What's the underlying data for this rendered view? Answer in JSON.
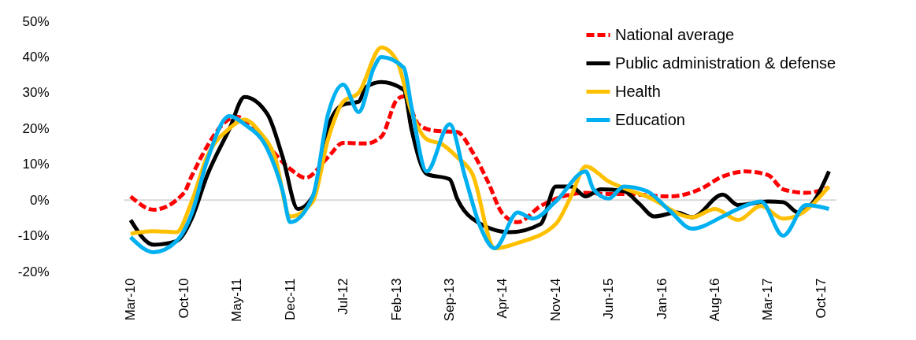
{
  "chart_data": {
    "type": "line",
    "xlim": [
      "2010-02",
      "2017-12"
    ],
    "xticks": [
      {
        "value": "2010-03",
        "label": "Mar-10"
      },
      {
        "value": "2010-10",
        "label": "Oct-10"
      },
      {
        "value": "2011-05",
        "label": "May-11"
      },
      {
        "value": "2011-12",
        "label": "Dec-11"
      },
      {
        "value": "2012-07",
        "label": "Jul-12"
      },
      {
        "value": "2013-02",
        "label": "Feb-13"
      },
      {
        "value": "2013-09",
        "label": "Sep-13"
      },
      {
        "value": "2014-04",
        "label": "Apr-14"
      },
      {
        "value": "2014-11",
        "label": "Nov-14"
      },
      {
        "value": "2015-06",
        "label": "Jun-15"
      },
      {
        "value": "2016-01",
        "label": "Jan-16"
      },
      {
        "value": "2016-08",
        "label": "Aug-16"
      },
      {
        "value": "2017-03",
        "label": "Mar-17"
      },
      {
        "value": "2017-10",
        "label": "Oct-17"
      }
    ],
    "ylim": [
      -20,
      50
    ],
    "yticks": [
      {
        "value": -20,
        "label": "-20%"
      },
      {
        "value": -10,
        "label": "-10%"
      },
      {
        "value": 0,
        "label": "0%"
      },
      {
        "value": 10,
        "label": "10%"
      },
      {
        "value": 20,
        "label": "20%"
      },
      {
        "value": 30,
        "label": "30%"
      },
      {
        "value": 40,
        "label": "40%"
      },
      {
        "value": 50,
        "label": "50%"
      }
    ],
    "grid": false,
    "legend": "top right",
    "marker": "none",
    "ref_lines": [
      {
        "axis": "y",
        "value": 0,
        "color": "#d9d9d9",
        "line_style": "solid"
      }
    ],
    "series": [
      {
        "name": "National average",
        "color": "#ff0000",
        "line_style": "dashed",
        "x": [
          "2010-03",
          "2010-06",
          "2010-10",
          "2010-11",
          "2011-05",
          "2011-08",
          "2011-12",
          "2012-02",
          "2012-05",
          "2012-07",
          "2012-10",
          "2012-12",
          "2013-02",
          "2013-03",
          "2013-05",
          "2013-07",
          "2013-10",
          "2013-12",
          "2014-02",
          "2014-04",
          "2014-06",
          "2014-09",
          "2015-03",
          "2015-06",
          "2015-08",
          "2016-02",
          "2016-06",
          "2016-09",
          "2016-12",
          "2017-03",
          "2017-05",
          "2017-08",
          "2017-11"
        ],
        "values": [
          1,
          -2.7,
          2,
          6.7,
          23.3,
          17.7,
          8.7,
          6.2,
          12,
          16,
          15.8,
          17.7,
          28,
          29,
          21,
          19.4,
          19,
          13.5,
          5.2,
          -3.8,
          -6.2,
          -1.7,
          2,
          1.7,
          1.7,
          1,
          3,
          6.6,
          8,
          7,
          3,
          2,
          3.5
        ]
      },
      {
        "name": "Public administration & defense",
        "color": "#000000",
        "line_style": "solid",
        "x": [
          "2010-03",
          "2010-06",
          "2010-09",
          "2010-11",
          "2011-01",
          "2011-04",
          "2011-06",
          "2011-09",
          "2011-11",
          "2012-01",
          "2012-03",
          "2012-05",
          "2012-07",
          "2012-09",
          "2012-10",
          "2012-12",
          "2013-03",
          "2013-04",
          "2013-06",
          "2013-09",
          "2013-10",
          "2013-12",
          "2014-05",
          "2014-09",
          "2014-11",
          "2015-01",
          "2015-03",
          "2015-05",
          "2015-08",
          "2015-10",
          "2015-12",
          "2016-03",
          "2016-05",
          "2016-09",
          "2016-11",
          "2017-03",
          "2017-05",
          "2017-07",
          "2017-09",
          "2017-11"
        ],
        "values": [
          -5.6,
          -12.5,
          -11.5,
          -5.2,
          6.7,
          19.8,
          28.8,
          24,
          12,
          -2.5,
          1,
          20.4,
          26.7,
          27.5,
          31.6,
          33,
          30.8,
          19.8,
          7.3,
          5.8,
          0.4,
          -5.2,
          -9,
          -6.7,
          3.8,
          3.8,
          1,
          3,
          2.5,
          -1,
          -4.6,
          -3.5,
          -4.8,
          1.5,
          -1.4,
          -0.4,
          -0.6,
          -3.5,
          -0.4,
          8
        ]
      },
      {
        "name": "Health",
        "color": "#ffc000",
        "line_style": "solid",
        "x": [
          "2010-03",
          "2010-06",
          "2010-09",
          "2010-11",
          "2011-01",
          "2011-04",
          "2011-06",
          "2011-08",
          "2011-10",
          "2011-12",
          "2012-03",
          "2012-05",
          "2012-07",
          "2012-09",
          "2012-12",
          "2013-02",
          "2013-04",
          "2013-06",
          "2013-08",
          "2013-10",
          "2013-12",
          "2014-03",
          "2014-06",
          "2014-11",
          "2015-01",
          "2015-03",
          "2015-06",
          "2015-09",
          "2015-11",
          "2016-05",
          "2016-08",
          "2016-11",
          "2017-02",
          "2017-05",
          "2017-07",
          "2017-11"
        ],
        "values": [
          -9.4,
          -8.7,
          -9,
          -0.4,
          12,
          20,
          22.5,
          19,
          12,
          -4.6,
          -0.4,
          17,
          27.5,
          30,
          42.7,
          39,
          24.6,
          17,
          15.6,
          12,
          7.3,
          -13.5,
          -12,
          -6.7,
          1,
          9.4,
          5.2,
          2.5,
          1,
          -4.8,
          -2.5,
          -5.6,
          -1.7,
          -5.2,
          -4.2,
          3.8
        ]
      },
      {
        "name": "Education",
        "color": "#00b0f0",
        "line_style": "solid",
        "x": [
          "2010-03",
          "2010-06",
          "2010-09",
          "2010-11",
          "2011-01",
          "2011-04",
          "2011-06",
          "2011-09",
          "2011-11",
          "2011-12",
          "2012-03",
          "2012-05",
          "2012-07",
          "2012-09",
          "2012-11",
          "2012-12",
          "2013-03",
          "2013-04",
          "2013-06",
          "2013-09",
          "2013-11",
          "2014-01",
          "2014-03",
          "2014-06",
          "2014-08",
          "2014-11",
          "2015-03",
          "2015-04",
          "2015-06",
          "2015-08",
          "2015-11",
          "2016-02",
          "2016-05",
          "2016-09",
          "2016-11",
          "2017-02",
          "2017-05",
          "2017-08",
          "2017-11"
        ],
        "values": [
          -10.4,
          -14.6,
          -11.5,
          -3.8,
          10.8,
          23.5,
          21.2,
          14.2,
          2.5,
          -6.2,
          1,
          24,
          32.3,
          24.6,
          37,
          40,
          37,
          26,
          8,
          21.2,
          6.7,
          -7.3,
          -13.5,
          -3.5,
          -5.2,
          -0.4,
          8,
          3,
          0.4,
          3.8,
          2.5,
          -3,
          -8,
          -4.6,
          -2.5,
          -0.4,
          -10,
          -1.4,
          -2.5
        ]
      }
    ]
  }
}
